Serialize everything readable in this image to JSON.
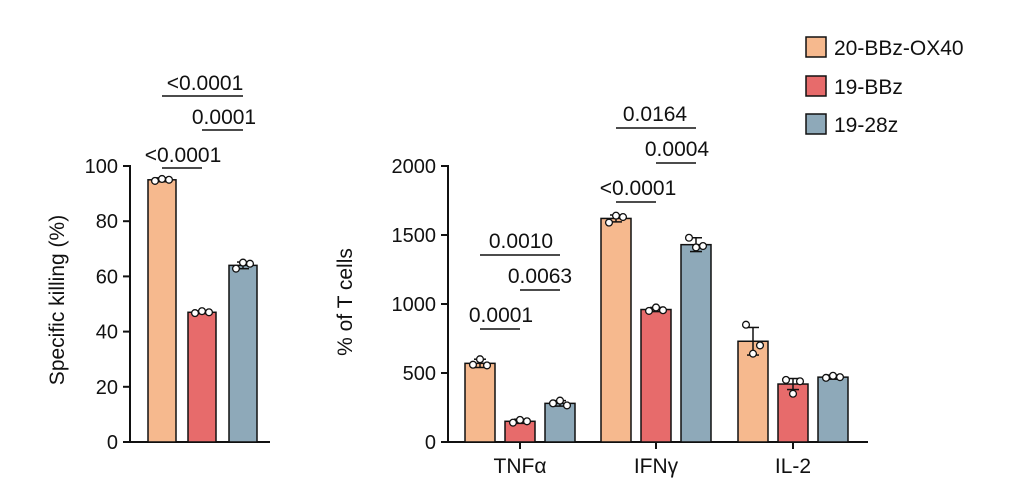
{
  "legend": {
    "placement": "top-right",
    "items": [
      {
        "label": "20-BBz-OX40",
        "color": "#f6b98e"
      },
      {
        "label": "19-BBz",
        "color": "#e76b6b"
      },
      {
        "label": "19-28z",
        "color": "#8ea9b9"
      }
    ]
  },
  "chart_data": [
    {
      "type": "bar",
      "panel": "left",
      "title": "",
      "xlabel": "",
      "ylabel": "Specific killing (%)",
      "ylim": [
        0,
        100
      ],
      "yticks": [
        "0",
        "20",
        "40",
        "60",
        "80",
        "100"
      ],
      "series": [
        {
          "name": "20-BBz-OX40",
          "value": 95,
          "error": 0.7,
          "points": [
            94.6,
            95.3,
            95.0
          ]
        },
        {
          "name": "19-BBz",
          "value": 47,
          "error": 0.5,
          "points": [
            46.7,
            47.4,
            47.0
          ]
        },
        {
          "name": "19-28z",
          "value": 64,
          "error": 1.2,
          "points": [
            62.8,
            65.0,
            64.6
          ]
        }
      ],
      "comparisons": [
        {
          "label": "<0.0001",
          "from": 0,
          "to": 1
        },
        {
          "label": "0.0001",
          "from": 1,
          "to": 2
        },
        {
          "label": "<0.0001",
          "from": 0,
          "to": 2
        }
      ]
    },
    {
      "type": "bar",
      "panel": "right",
      "title": "",
      "xlabel": "",
      "ylabel": "% of T cells",
      "ylim": [
        0,
        2000
      ],
      "yticks": [
        "0",
        "500",
        "1000",
        "1500",
        "2000"
      ],
      "categories": [
        "TNFα",
        "IFNγ",
        "IL-2"
      ],
      "series": [
        {
          "name": "20-BBz-OX40",
          "values": [
            570,
            1620,
            730
          ],
          "errors": [
            30,
            25,
            100
          ],
          "points": [
            [
              560,
              600,
              555
            ],
            [
              1590,
              1640,
              1630
            ],
            [
              850,
              640,
              700
            ]
          ]
        },
        {
          "name": "19-BBz",
          "values": [
            150,
            960,
            420
          ],
          "errors": [
            15,
            15,
            40
          ],
          "points": [
            [
              140,
              160,
              150
            ],
            [
              950,
              975,
              955
            ],
            [
              450,
              350,
              440
            ]
          ]
        },
        {
          "name": "19-28z",
          "values": [
            280,
            1430,
            470
          ],
          "errors": [
            20,
            50,
            15
          ],
          "points": [
            [
              280,
              300,
              265
            ],
            [
              1480,
              1410,
              1420
            ],
            [
              465,
              480,
              470
            ]
          ]
        }
      ],
      "comparisons": [
        {
          "category": "TNFα",
          "label": "0.0001",
          "from": 0,
          "to": 1
        },
        {
          "category": "TNFα",
          "label": "0.0063",
          "from": 1,
          "to": 2
        },
        {
          "category": "TNFα",
          "label": "0.0010",
          "from": 0,
          "to": 2
        },
        {
          "category": "IFNγ",
          "label": "<0.0001",
          "from": 0,
          "to": 1
        },
        {
          "category": "IFNγ",
          "label": "0.0004",
          "from": 1,
          "to": 2
        },
        {
          "category": "IFNγ",
          "label": "0.0164",
          "from": 0,
          "to": 2
        }
      ]
    }
  ]
}
